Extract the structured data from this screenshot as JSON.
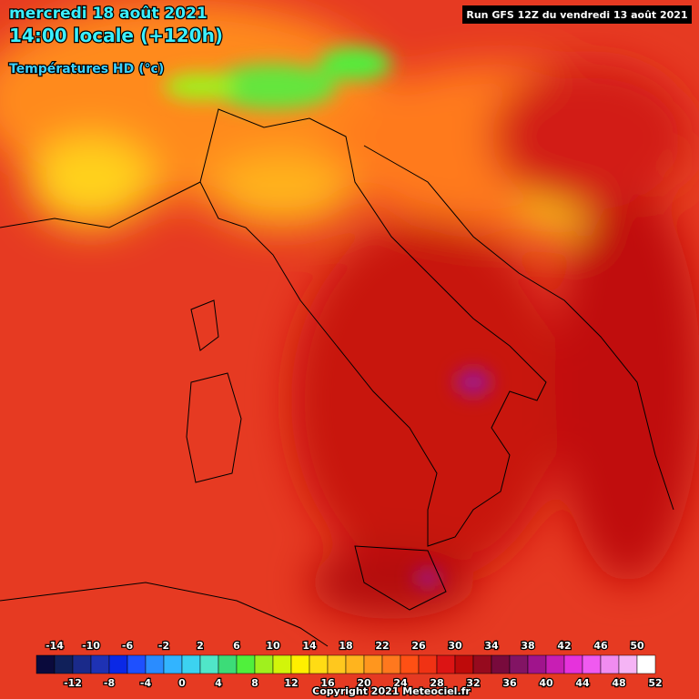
{
  "header": {
    "date": "mercredi 18 août 2021",
    "time": "14:00 locale (+120h)",
    "product": "Températures HD (°c)",
    "run": "Run GFS 12Z du vendredi 13 août 2021"
  },
  "legend": {
    "labels": [
      -14,
      -12,
      -10,
      -8,
      -6,
      -4,
      -2,
      0,
      2,
      4,
      6,
      8,
      10,
      12,
      14,
      16,
      18,
      20,
      22,
      24,
      26,
      28,
      30,
      32,
      34,
      36,
      38,
      40,
      42,
      44,
      46,
      48,
      50,
      52
    ],
    "colors": [
      "#0a0a3c",
      "#10205a",
      "#1a2a8a",
      "#1e32b4",
      "#0a28e6",
      "#1e50ff",
      "#2a8cff",
      "#32b4ff",
      "#3cd2f0",
      "#50e6c8",
      "#3cdc78",
      "#50f03c",
      "#a0f01e",
      "#d2f50a",
      "#fff000",
      "#ffdc14",
      "#ffc81e",
      "#ffb41e",
      "#ff961e",
      "#ff781e",
      "#ff5014",
      "#f03214",
      "#dc1414",
      "#be0a0a",
      "#960a1e",
      "#780a3c",
      "#821464",
      "#a0148c",
      "#c81eb4",
      "#e632dc",
      "#f05af0",
      "#f08cf0",
      "#f5b4f5",
      "#ffffff"
    ]
  },
  "footer": {
    "copyright": "Copyright 2021 Meteociel.fr"
  }
}
